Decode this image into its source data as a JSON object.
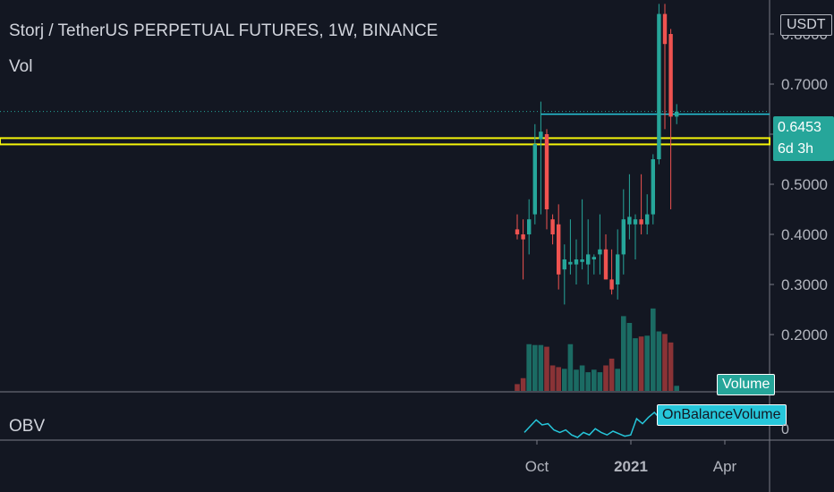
{
  "header": {
    "title": "Storj / TetherUS PERPETUAL FUTURES, 1W, BINANCE",
    "vol_label": "Vol",
    "obv_label": "OBV"
  },
  "price_scale": {
    "currency_button": "USDT",
    "ticks": [
      "0.8000",
      "0.7000",
      "0.6000",
      "0.5000",
      "0.4000",
      "0.3000",
      "0.2000"
    ],
    "last_price": "0.6453",
    "countdown": "6d 3h"
  },
  "badges": {
    "volume": "Volume",
    "obv_series": "OnBalanceVolume",
    "obv_zero": "0"
  },
  "time_axis": {
    "labels": [
      "Oct",
      "2021",
      "Apr"
    ]
  },
  "colors": {
    "background": "#131722",
    "up": "#26a69a",
    "down": "#ef5350",
    "vol_up": "#1b6b63",
    "vol_down": "#8a3336",
    "horizontal_line": "#f5f50a",
    "price_line": "#26c6da",
    "obv_line": "#26c6da",
    "grid": "#2a2e39"
  },
  "chart_data": {
    "type": "candlestick",
    "title": "Storj / TetherUS PERPETUAL FUTURES, 1W, BINANCE",
    "ylim": [
      0.1,
      0.85
    ],
    "horizontal_level": 0.585,
    "last_price": 0.6453,
    "candles": [
      {
        "o": 0.41,
        "h": 0.44,
        "l": 0.39,
        "c": 0.4
      },
      {
        "o": 0.4,
        "h": 0.43,
        "l": 0.31,
        "c": 0.39
      },
      {
        "o": 0.4,
        "h": 0.47,
        "l": 0.36,
        "c": 0.43
      },
      {
        "o": 0.44,
        "h": 0.62,
        "l": 0.42,
        "c": 0.58
      },
      {
        "o": 0.59,
        "h": 0.665,
        "l": 0.44,
        "c": 0.605
      },
      {
        "o": 0.6,
        "h": 0.61,
        "l": 0.41,
        "c": 0.45
      },
      {
        "o": 0.43,
        "h": 0.44,
        "l": 0.38,
        "c": 0.4
      },
      {
        "o": 0.42,
        "h": 0.46,
        "l": 0.29,
        "c": 0.32
      },
      {
        "o": 0.33,
        "h": 0.38,
        "l": 0.26,
        "c": 0.35
      },
      {
        "o": 0.34,
        "h": 0.43,
        "l": 0.32,
        "c": 0.345
      },
      {
        "o": 0.34,
        "h": 0.39,
        "l": 0.3,
        "c": 0.35
      },
      {
        "o": 0.345,
        "h": 0.47,
        "l": 0.33,
        "c": 0.35
      },
      {
        "o": 0.34,
        "h": 0.43,
        "l": 0.3,
        "c": 0.36
      },
      {
        "o": 0.35,
        "h": 0.36,
        "l": 0.32,
        "c": 0.355
      },
      {
        "o": 0.36,
        "h": 0.44,
        "l": 0.32,
        "c": 0.37
      },
      {
        "o": 0.37,
        "h": 0.4,
        "l": 0.31,
        "c": 0.31
      },
      {
        "o": 0.31,
        "h": 0.37,
        "l": 0.28,
        "c": 0.29
      },
      {
        "o": 0.3,
        "h": 0.41,
        "l": 0.27,
        "c": 0.36
      },
      {
        "o": 0.36,
        "h": 0.49,
        "l": 0.32,
        "c": 0.43
      },
      {
        "o": 0.42,
        "h": 0.52,
        "l": 0.39,
        "c": 0.435
      },
      {
        "o": 0.42,
        "h": 0.44,
        "l": 0.35,
        "c": 0.43
      },
      {
        "o": 0.43,
        "h": 0.52,
        "l": 0.4,
        "c": 0.42
      },
      {
        "o": 0.42,
        "h": 0.48,
        "l": 0.4,
        "c": 0.44
      },
      {
        "o": 0.44,
        "h": 0.56,
        "l": 0.42,
        "c": 0.55
      },
      {
        "o": 0.55,
        "h": 0.86,
        "l": 0.54,
        "c": 0.84
      },
      {
        "o": 0.84,
        "h": 0.86,
        "l": 0.61,
        "c": 0.78
      },
      {
        "o": 0.8,
        "h": 0.81,
        "l": 0.45,
        "c": 0.635
      },
      {
        "o": 0.635,
        "h": 0.66,
        "l": 0.62,
        "c": 0.645
      }
    ],
    "volume_relative": [
      0.08,
      0.15,
      0.55,
      0.54,
      0.54,
      0.52,
      0.3,
      0.28,
      0.26,
      0.55,
      0.25,
      0.3,
      0.22,
      0.25,
      0.22,
      0.3,
      0.38,
      0.26,
      0.88,
      0.8,
      0.62,
      0.64,
      0.65,
      0.97,
      0.7,
      0.67,
      0.57,
      0.06
    ],
    "obv_relative": [
      0.2,
      0.45,
      0.7,
      0.5,
      0.55,
      0.3,
      0.2,
      0.3,
      0.1,
      0.0,
      0.2,
      0.1,
      0.35,
      0.2,
      0.1,
      0.25,
      0.15,
      0.05,
      0.1,
      0.75,
      0.55,
      0.8,
      1.0,
      0.75,
      0.9,
      0.95,
      0.85,
      0.9
    ],
    "x_labels": [
      "Oct",
      "2021",
      "Apr"
    ]
  }
}
